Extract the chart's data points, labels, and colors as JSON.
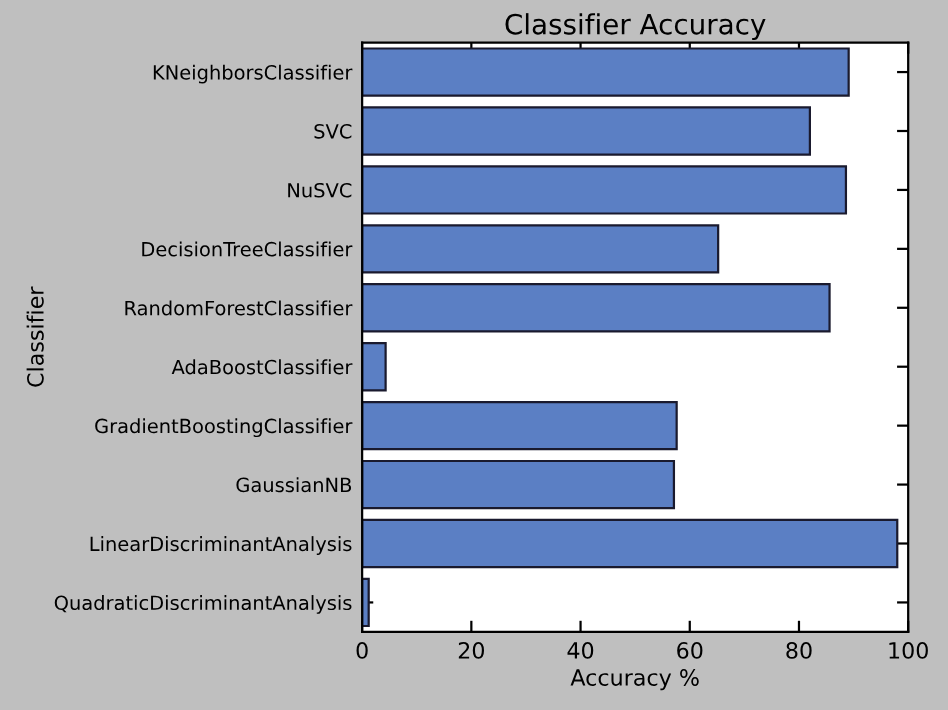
{
  "chart_data": {
    "type": "bar",
    "orientation": "horizontal",
    "title": "Classifier Accuracy",
    "xlabel": "Accuracy %",
    "ylabel": "Classifier",
    "categories": [
      "KNeighborsClassifier",
      "SVC",
      "NuSVC",
      "DecisionTreeClassifier",
      "RandomForestClassifier",
      "AdaBoostClassifier",
      "GradientBoostingClassifier",
      "GaussianNB",
      "LinearDiscriminantAnalysis",
      "QuadraticDiscriminantAnalysis"
    ],
    "values": [
      89.1,
      82.0,
      88.6,
      65.2,
      85.6,
      4.3,
      57.6,
      57.1,
      98.0,
      1.2
    ],
    "color": "#5b7fc4",
    "xlim": [
      0,
      100
    ],
    "xticks": [
      0,
      20,
      40,
      60,
      80,
      100
    ],
    "grid": false,
    "legend": false
  }
}
